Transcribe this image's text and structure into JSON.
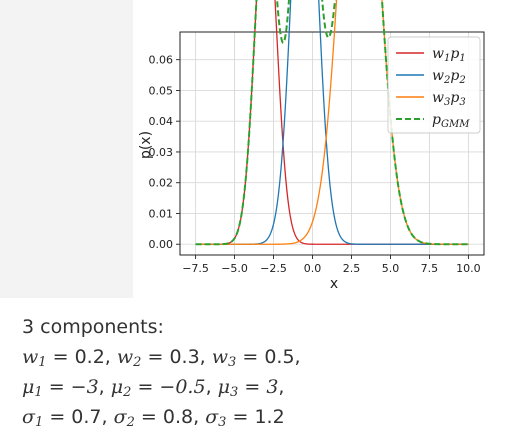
{
  "chart_data": {
    "type": "line",
    "title": "",
    "xlabel": "x",
    "ylabel": "p(x)",
    "xlim": [
      -8.5,
      11
    ],
    "ylim": [
      -0.0035,
      0.069
    ],
    "x_ticks": [
      "−7.5",
      "−5.0",
      "−2.5",
      "0.0",
      "2.5",
      "5.0",
      "7.5",
      "10.0"
    ],
    "y_ticks": [
      "0.00",
      "0.01",
      "0.02",
      "0.03",
      "0.04",
      "0.05",
      "0.06"
    ],
    "grid": true,
    "legend_position": "top-right",
    "x_range": [
      -7.5,
      10
    ],
    "series": [
      {
        "name": "w1p1",
        "label_base": "w",
        "label_sub1": "1",
        "label_mid": "p",
        "label_sub2": "1",
        "weight": 0.2,
        "mu": -3,
        "sigma": 0.7,
        "color": "#d62728",
        "dash": false
      },
      {
        "name": "w2p2",
        "label_base": "w",
        "label_sub1": "2",
        "label_mid": "p",
        "label_sub2": "2",
        "weight": 0.3,
        "mu": -0.5,
        "sigma": 0.8,
        "color": "#1f77b4",
        "dash": false
      },
      {
        "name": "w3p3",
        "label_base": "w",
        "label_sub1": "3",
        "label_mid": "p",
        "label_sub2": "3",
        "weight": 0.5,
        "mu": 3,
        "sigma": 1.2,
        "color": "#ff7f0e",
        "dash": false
      },
      {
        "name": "pGMM",
        "label_base": "",
        "label_sub1": "",
        "label_mid": "p",
        "label_sub2": "GMM",
        "weight": null,
        "mu": null,
        "sigma": null,
        "color": "#2ca02c",
        "dash": true
      }
    ]
  },
  "caption": {
    "intro": "3 components:",
    "w_vals": [
      "0.2",
      "0.3",
      "0.5"
    ],
    "mu_vals": [
      "−3",
      "−0.5",
      "3"
    ],
    "sigma_vals": [
      "0.7",
      "0.8",
      "1.2"
    ],
    "subs": [
      "1",
      "2",
      "3"
    ],
    "eq": "=",
    "sep": ","
  }
}
